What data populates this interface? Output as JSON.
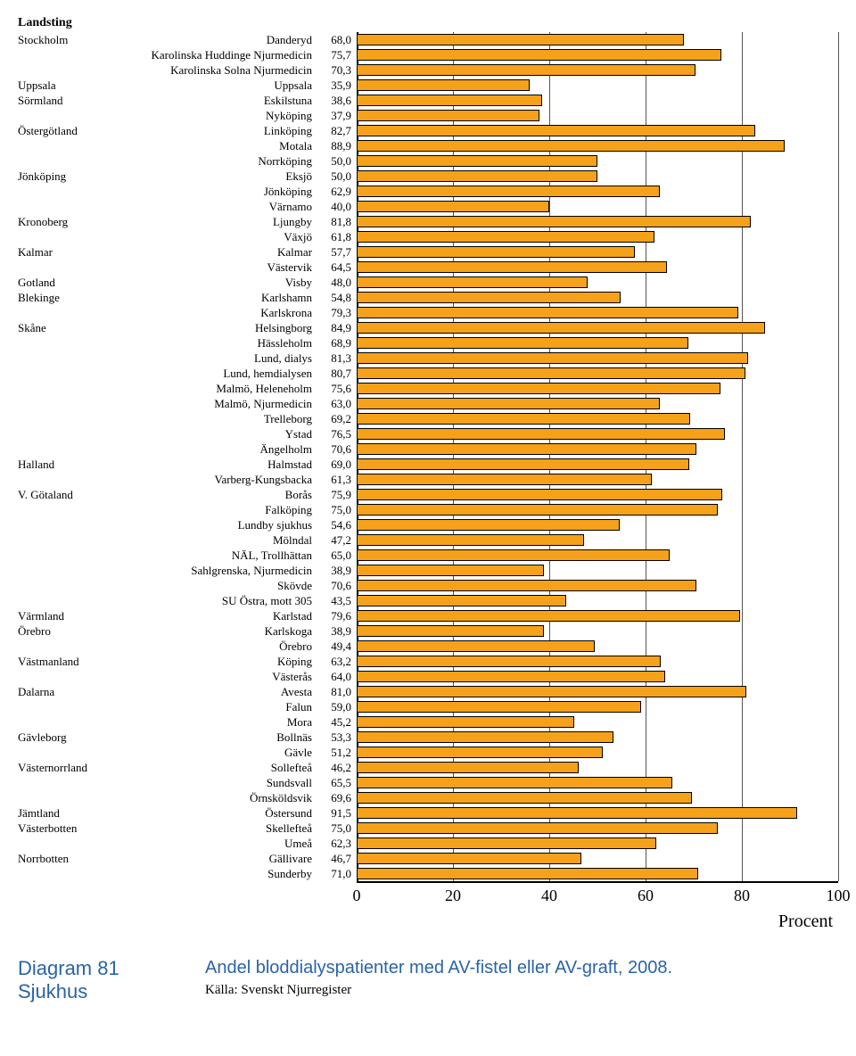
{
  "chart": {
    "type": "bar",
    "xlim": [
      0,
      100
    ],
    "xtick_step": 20,
    "xticks": [
      0,
      20,
      40,
      60,
      80,
      100
    ],
    "bar_color": "#f6a11a",
    "bar_border_color": "#000000",
    "gridline_color": "#555555",
    "background_color": "#ffffff",
    "axis_label": "Procent",
    "header_landsting": "Landsting",
    "rows": [
      {
        "landsting": "Stockholm",
        "sjukhus": "Danderyd",
        "value": "68,0",
        "num": 68.0
      },
      {
        "landsting": "",
        "sjukhus": "Karolinska Huddinge Njurmedicin",
        "value": "75,7",
        "num": 75.7
      },
      {
        "landsting": "",
        "sjukhus": "Karolinska Solna Njurmedicin",
        "value": "70,3",
        "num": 70.3
      },
      {
        "landsting": "Uppsala",
        "sjukhus": "Uppsala",
        "value": "35,9",
        "num": 35.9
      },
      {
        "landsting": "Sörmland",
        "sjukhus": "Eskilstuna",
        "value": "38,6",
        "num": 38.6
      },
      {
        "landsting": "",
        "sjukhus": "Nyköping",
        "value": "37,9",
        "num": 37.9
      },
      {
        "landsting": "Östergötland",
        "sjukhus": "Linköping",
        "value": "82,7",
        "num": 82.7
      },
      {
        "landsting": "",
        "sjukhus": "Motala",
        "value": "88,9",
        "num": 88.9
      },
      {
        "landsting": "",
        "sjukhus": "Norrköping",
        "value": "50,0",
        "num": 50.0
      },
      {
        "landsting": "Jönköping",
        "sjukhus": "Eksjö",
        "value": "50,0",
        "num": 50.0
      },
      {
        "landsting": "",
        "sjukhus": "Jönköping",
        "value": "62,9",
        "num": 62.9
      },
      {
        "landsting": "",
        "sjukhus": "Värnamo",
        "value": "40,0",
        "num": 40.0
      },
      {
        "landsting": "Kronoberg",
        "sjukhus": "Ljungby",
        "value": "81,8",
        "num": 81.8
      },
      {
        "landsting": "",
        "sjukhus": "Växjö",
        "value": "61,8",
        "num": 61.8
      },
      {
        "landsting": "Kalmar",
        "sjukhus": "Kalmar",
        "value": "57,7",
        "num": 57.7
      },
      {
        "landsting": "",
        "sjukhus": "Västervik",
        "value": "64,5",
        "num": 64.5
      },
      {
        "landsting": "Gotland",
        "sjukhus": "Visby",
        "value": "48,0",
        "num": 48.0
      },
      {
        "landsting": "Blekinge",
        "sjukhus": "Karlshamn",
        "value": "54,8",
        "num": 54.8
      },
      {
        "landsting": "",
        "sjukhus": "Karlskrona",
        "value": "79,3",
        "num": 79.3
      },
      {
        "landsting": "Skåne",
        "sjukhus": "Helsingborg",
        "value": "84,9",
        "num": 84.9
      },
      {
        "landsting": "",
        "sjukhus": "Hässleholm",
        "value": "68,9",
        "num": 68.9
      },
      {
        "landsting": "",
        "sjukhus": "Lund, dialys",
        "value": "81,3",
        "num": 81.3
      },
      {
        "landsting": "",
        "sjukhus": "Lund, hemdialysen",
        "value": "80,7",
        "num": 80.7
      },
      {
        "landsting": "",
        "sjukhus": "Malmö, Heleneholm",
        "value": "75,6",
        "num": 75.6
      },
      {
        "landsting": "",
        "sjukhus": "Malmö, Njurmedicin",
        "value": "63,0",
        "num": 63.0
      },
      {
        "landsting": "",
        "sjukhus": "Trelleborg",
        "value": "69,2",
        "num": 69.2
      },
      {
        "landsting": "",
        "sjukhus": "Ystad",
        "value": "76,5",
        "num": 76.5
      },
      {
        "landsting": "",
        "sjukhus": "Ängelholm",
        "value": "70,6",
        "num": 70.6
      },
      {
        "landsting": "Halland",
        "sjukhus": "Halmstad",
        "value": "69,0",
        "num": 69.0
      },
      {
        "landsting": "",
        "sjukhus": "Varberg-Kungsbacka",
        "value": "61,3",
        "num": 61.3
      },
      {
        "landsting": "V. Götaland",
        "sjukhus": "Borås",
        "value": "75,9",
        "num": 75.9
      },
      {
        "landsting": "",
        "sjukhus": "Falköping",
        "value": "75,0",
        "num": 75.0
      },
      {
        "landsting": "",
        "sjukhus": "Lundby sjukhus",
        "value": "54,6",
        "num": 54.6
      },
      {
        "landsting": "",
        "sjukhus": "Mölndal",
        "value": "47,2",
        "num": 47.2
      },
      {
        "landsting": "",
        "sjukhus": "NÄL, Trollhättan",
        "value": "65,0",
        "num": 65.0
      },
      {
        "landsting": "",
        "sjukhus": "Sahlgrenska, Njurmedicin",
        "value": "38,9",
        "num": 38.9
      },
      {
        "landsting": "",
        "sjukhus": "Skövde",
        "value": "70,6",
        "num": 70.6
      },
      {
        "landsting": "",
        "sjukhus": "SU Östra, mott 305",
        "value": "43,5",
        "num": 43.5
      },
      {
        "landsting": "Värmland",
        "sjukhus": "Karlstad",
        "value": "79,6",
        "num": 79.6
      },
      {
        "landsting": "Örebro",
        "sjukhus": "Karlskoga",
        "value": "38,9",
        "num": 38.9
      },
      {
        "landsting": "",
        "sjukhus": "Örebro",
        "value": "49,4",
        "num": 49.4
      },
      {
        "landsting": "Västmanland",
        "sjukhus": "Köping",
        "value": "63,2",
        "num": 63.2
      },
      {
        "landsting": "",
        "sjukhus": "Västerås",
        "value": "64,0",
        "num": 64.0
      },
      {
        "landsting": "Dalarna",
        "sjukhus": "Avesta",
        "value": "81,0",
        "num": 81.0
      },
      {
        "landsting": "",
        "sjukhus": "Falun",
        "value": "59,0",
        "num": 59.0
      },
      {
        "landsting": "",
        "sjukhus": "Mora",
        "value": "45,2",
        "num": 45.2
      },
      {
        "landsting": "Gävleborg",
        "sjukhus": "Bollnäs",
        "value": "53,3",
        "num": 53.3
      },
      {
        "landsting": "",
        "sjukhus": "Gävle",
        "value": "51,2",
        "num": 51.2
      },
      {
        "landsting": "Västernorrland",
        "sjukhus": "Sollefteå",
        "value": "46,2",
        "num": 46.2
      },
      {
        "landsting": "",
        "sjukhus": "Sundsvall",
        "value": "65,5",
        "num": 65.5
      },
      {
        "landsting": "",
        "sjukhus": "Örnsköldsvik",
        "value": "69,6",
        "num": 69.6
      },
      {
        "landsting": "Jämtland",
        "sjukhus": "Östersund",
        "value": "91,5",
        "num": 91.5
      },
      {
        "landsting": "Västerbotten",
        "sjukhus": "Skellefteå",
        "value": "75,0",
        "num": 75.0
      },
      {
        "landsting": "",
        "sjukhus": "Umeå",
        "value": "62,3",
        "num": 62.3
      },
      {
        "landsting": "Norrbotten",
        "sjukhus": "Gällivare",
        "value": "46,7",
        "num": 46.7
      },
      {
        "landsting": "",
        "sjukhus": "Sunderby",
        "value": "71,0",
        "num": 71.0
      }
    ]
  },
  "footer": {
    "diagram_label_1": "Diagram 81",
    "diagram_label_2": "Sjukhus",
    "title": "Andel bloddialyspatienter med AV-fistel eller AV-graft, 2008.",
    "source": "Källa: Svenskt Njurregister"
  }
}
